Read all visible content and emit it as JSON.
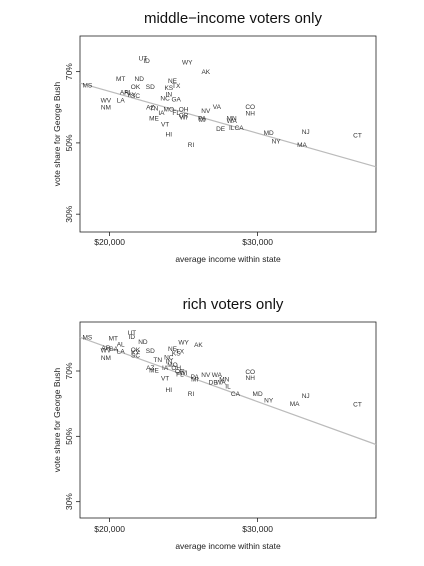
{
  "chart_data": [
    {
      "type": "scatter",
      "title": "middle−income voters only",
      "xlabel": "average income within state",
      "ylabel": "vote share for George Bush",
      "xlim": [
        18000,
        38000
      ],
      "ylim": [
        0.25,
        0.8
      ],
      "xticks": [
        {
          "value": 20000,
          "label": "$20,000"
        },
        {
          "value": 30000,
          "label": "$30,000"
        }
      ],
      "yticks": [
        {
          "value": 0.3,
          "label": "30%"
        },
        {
          "value": 0.5,
          "label": "50%"
        },
        {
          "value": 0.7,
          "label": "70%"
        }
      ],
      "fit_line": {
        "x": [
          18000,
          38000
        ],
        "y": [
          0.668,
          0.433
        ]
      },
      "points": [
        {
          "label": "UT",
          "x": 22250,
          "y": 0.738
        },
        {
          "label": "ID",
          "x": 22500,
          "y": 0.73
        },
        {
          "label": "WY",
          "x": 25250,
          "y": 0.726
        },
        {
          "label": "AK",
          "x": 26500,
          "y": 0.7
        },
        {
          "label": "MT",
          "x": 20750,
          "y": 0.68
        },
        {
          "label": "ND",
          "x": 22000,
          "y": 0.68
        },
        {
          "label": "NE",
          "x": 24250,
          "y": 0.675
        },
        {
          "label": "OK",
          "x": 21750,
          "y": 0.658
        },
        {
          "label": "SD",
          "x": 22750,
          "y": 0.658
        },
        {
          "label": "KS",
          "x": 24000,
          "y": 0.655
        },
        {
          "label": "TX",
          "x": 24500,
          "y": 0.66
        },
        {
          "label": "MS",
          "x": 18500,
          "y": 0.662
        },
        {
          "label": "AR",
          "x": 21000,
          "y": 0.642
        },
        {
          "label": "AL",
          "x": 21250,
          "y": 0.642
        },
        {
          "label": "KY",
          "x": 21500,
          "y": 0.635
        },
        {
          "label": "SC",
          "x": 21750,
          "y": 0.632
        },
        {
          "label": "IN",
          "x": 24000,
          "y": 0.637
        },
        {
          "label": "NC",
          "x": 23750,
          "y": 0.625
        },
        {
          "label": "GA",
          "x": 24500,
          "y": 0.622
        },
        {
          "label": "WV",
          "x": 19750,
          "y": 0.62
        },
        {
          "label": "LA",
          "x": 20750,
          "y": 0.62
        },
        {
          "label": "TN",
          "x": 23000,
          "y": 0.598
        },
        {
          "label": "NM",
          "x": 19750,
          "y": 0.6
        },
        {
          "label": "AZ",
          "x": 22750,
          "y": 0.6
        },
        {
          "label": "MO",
          "x": 24000,
          "y": 0.595
        },
        {
          "label": "OH",
          "x": 25000,
          "y": 0.595
        },
        {
          "label": "VA",
          "x": 27250,
          "y": 0.602
        },
        {
          "label": "CO",
          "x": 29500,
          "y": 0.602
        },
        {
          "label": "IA",
          "x": 23500,
          "y": 0.585
        },
        {
          "label": "FL",
          "x": 24500,
          "y": 0.585
        },
        {
          "label": "NV",
          "x": 26500,
          "y": 0.59
        },
        {
          "label": "NH",
          "x": 29500,
          "y": 0.583
        },
        {
          "label": "ME",
          "x": 23000,
          "y": 0.57
        },
        {
          "label": "PA",
          "x": 26250,
          "y": 0.57
        },
        {
          "label": "MN",
          "x": 28250,
          "y": 0.57
        },
        {
          "label": "WA",
          "x": 28250,
          "y": 0.562
        },
        {
          "label": "OR",
          "x": 25000,
          "y": 0.578
        },
        {
          "label": "WI",
          "x": 25000,
          "y": 0.572
        },
        {
          "label": "MI",
          "x": 26250,
          "y": 0.565
        },
        {
          "label": "VT",
          "x": 23750,
          "y": 0.553
        },
        {
          "label": "DE",
          "x": 27500,
          "y": 0.54
        },
        {
          "label": "IL",
          "x": 28250,
          "y": 0.543
        },
        {
          "label": "CA",
          "x": 28750,
          "y": 0.543
        },
        {
          "label": "MD",
          "x": 30750,
          "y": 0.528
        },
        {
          "label": "NJ",
          "x": 33250,
          "y": 0.532
        },
        {
          "label": "CT",
          "x": 36750,
          "y": 0.522
        },
        {
          "label": "HI",
          "x": 24000,
          "y": 0.525
        },
        {
          "label": "NY",
          "x": 31250,
          "y": 0.505
        },
        {
          "label": "MA",
          "x": 33000,
          "y": 0.495
        },
        {
          "label": "RI",
          "x": 25500,
          "y": 0.495
        }
      ]
    },
    {
      "type": "scatter",
      "title": "rich voters only",
      "xlabel": "average income within state",
      "ylabel": "vote share for George Bush",
      "xlim": [
        18000,
        38000
      ],
      "ylim": [
        0.25,
        0.85
      ],
      "xticks": [
        {
          "value": 20000,
          "label": "$20,000"
        },
        {
          "value": 30000,
          "label": "$30,000"
        }
      ],
      "yticks": [
        {
          "value": 0.3,
          "label": "30%"
        },
        {
          "value": 0.5,
          "label": "50%"
        },
        {
          "value": 0.7,
          "label": "70%"
        }
      ],
      "fit_line": {
        "x": [
          18000,
          38000
        ],
        "y": [
          0.803,
          0.475
        ]
      },
      "points": [
        {
          "label": "UT",
          "x": 21500,
          "y": 0.818
        },
        {
          "label": "ID",
          "x": 21500,
          "y": 0.805
        },
        {
          "label": "MS",
          "x": 18500,
          "y": 0.803
        },
        {
          "label": "MT",
          "x": 20250,
          "y": 0.8
        },
        {
          "label": "ND",
          "x": 22250,
          "y": 0.79
        },
        {
          "label": "WY",
          "x": 25000,
          "y": 0.788
        },
        {
          "label": "AK",
          "x": 26000,
          "y": 0.78
        },
        {
          "label": "AL",
          "x": 20750,
          "y": 0.782
        },
        {
          "label": "AR",
          "x": 19750,
          "y": 0.772
        },
        {
          "label": "GA",
          "x": 20250,
          "y": 0.768
        },
        {
          "label": "WV",
          "x": 19750,
          "y": 0.763
        },
        {
          "label": "LA",
          "x": 20750,
          "y": 0.76
        },
        {
          "label": "OK",
          "x": 21750,
          "y": 0.765
        },
        {
          "label": "KY",
          "x": 21750,
          "y": 0.758
        },
        {
          "label": "SD",
          "x": 22750,
          "y": 0.762
        },
        {
          "label": "NE",
          "x": 24250,
          "y": 0.768
        },
        {
          "label": "KS",
          "x": 24500,
          "y": 0.755
        },
        {
          "label": "TX",
          "x": 24750,
          "y": 0.76
        },
        {
          "label": "SC",
          "x": 21750,
          "y": 0.748
        },
        {
          "label": "NM",
          "x": 19750,
          "y": 0.74
        },
        {
          "label": "NC",
          "x": 24000,
          "y": 0.742
        },
        {
          "label": "TN",
          "x": 23250,
          "y": 0.735
        },
        {
          "label": "IN",
          "x": 24000,
          "y": 0.73
        },
        {
          "label": "MO",
          "x": 24250,
          "y": 0.72
        },
        {
          "label": "AZ",
          "x": 22750,
          "y": 0.71
        },
        {
          "label": "IA",
          "x": 23750,
          "y": 0.71
        },
        {
          "label": "OH",
          "x": 24500,
          "y": 0.71
        },
        {
          "label": "ME",
          "x": 23000,
          "y": 0.702
        },
        {
          "label": "OR",
          "x": 24750,
          "y": 0.7
        },
        {
          "label": "WI",
          "x": 25000,
          "y": 0.695
        },
        {
          "label": "CO",
          "x": 29500,
          "y": 0.698
        },
        {
          "label": "NV",
          "x": 26500,
          "y": 0.688
        },
        {
          "label": "WA",
          "x": 27250,
          "y": 0.688
        },
        {
          "label": "NH",
          "x": 29500,
          "y": 0.68
        },
        {
          "label": "PA",
          "x": 25750,
          "y": 0.682
        },
        {
          "label": "FL",
          "x": 24750,
          "y": 0.69
        },
        {
          "label": "MI",
          "x": 25750,
          "y": 0.675
        },
        {
          "label": "VT",
          "x": 23750,
          "y": 0.678
        },
        {
          "label": "MN",
          "x": 27750,
          "y": 0.675
        },
        {
          "label": "DE",
          "x": 27000,
          "y": 0.665
        },
        {
          "label": "WA",
          "x": 27500,
          "y": 0.665
        },
        {
          "label": "IL",
          "x": 28000,
          "y": 0.653
        },
        {
          "label": "HI",
          "x": 24000,
          "y": 0.643
        },
        {
          "label": "RI",
          "x": 25500,
          "y": 0.63
        },
        {
          "label": "CA",
          "x": 28500,
          "y": 0.63
        },
        {
          "label": "MD",
          "x": 30000,
          "y": 0.63
        },
        {
          "label": "NJ",
          "x": 33250,
          "y": 0.625
        },
        {
          "label": "NY",
          "x": 30750,
          "y": 0.61
        },
        {
          "label": "MA",
          "x": 32500,
          "y": 0.6
        },
        {
          "label": "CT",
          "x": 36750,
          "y": 0.598
        }
      ]
    }
  ]
}
